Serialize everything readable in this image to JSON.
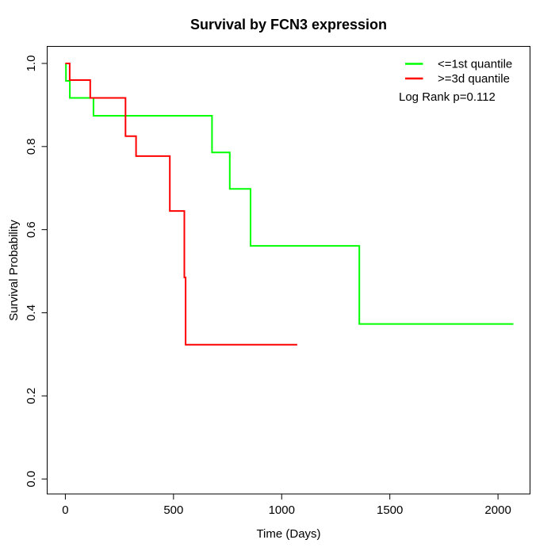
{
  "chart_data": {
    "type": "line",
    "subtype": "kaplan-meier-step",
    "title": "Survival by FCN3 expression",
    "xlabel": "Time (Days)",
    "ylabel": "Survival Probability",
    "x_ticks": [
      "0",
      "500",
      "1000",
      "1500",
      "2000"
    ],
    "y_ticks": [
      "0.0",
      "0.2",
      "0.4",
      "0.6",
      "0.8",
      "1.0"
    ],
    "xlim": [
      -84,
      2148
    ],
    "ylim": [
      -0.036,
      1.041
    ],
    "x_tick_values": [
      0,
      500,
      1000,
      1500,
      2000
    ],
    "y_tick_values": [
      0.0,
      0.2,
      0.4,
      0.6,
      0.8,
      1.0
    ],
    "grid": false,
    "legend_position": "top-right",
    "annotation": "Log Rank p=0.112",
    "series": [
      {
        "name": "<=1st quantile",
        "color": "#00ff00",
        "points": [
          [
            0,
            1.0
          ],
          [
            3,
            0.958
          ],
          [
            21,
            0.917
          ],
          [
            130,
            0.874
          ],
          [
            678,
            0.786
          ],
          [
            760,
            0.698
          ],
          [
            856,
            0.561
          ],
          [
            1359,
            0.373
          ],
          [
            2071,
            0.373
          ]
        ]
      },
      {
        "name": ">=3d quantile",
        "color": "#ff0000",
        "points": [
          [
            0,
            1.0
          ],
          [
            20,
            0.96
          ],
          [
            115,
            0.917
          ],
          [
            278,
            0.825
          ],
          [
            327,
            0.777
          ],
          [
            483,
            0.645
          ],
          [
            550,
            0.485
          ],
          [
            556,
            0.323
          ],
          [
            1072,
            0.323
          ]
        ]
      }
    ]
  },
  "legend": {
    "entries": [
      {
        "label": "<=1st quantile",
        "color": "#00ff00",
        "icon": "line-sample-icon"
      },
      {
        "label": ">=3d quantile",
        "color": "#ff0000",
        "icon": "line-sample-icon"
      }
    ],
    "annotation": "Log Rank p=0.112"
  },
  "colors": {
    "background": "#ffffff",
    "axis": "#000000",
    "group_low": "#00ff00",
    "group_high": "#ff0000"
  }
}
